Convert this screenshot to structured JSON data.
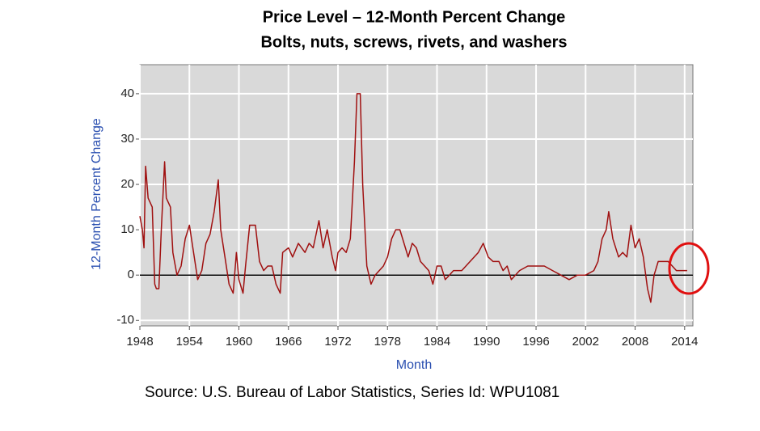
{
  "chart_data": {
    "type": "line",
    "title": "Price Level – 12-Month Percent Change",
    "subtitle": "Bolts, nuts, screws, rivets, and washers",
    "x_label": "Month",
    "y_label": "12-Month Percent Change",
    "source": "Source: U.S. Bureau of Labor Statistics, Series Id:  WPU1081",
    "color": "#a01010",
    "grid": true,
    "xlim": [
      1948,
      2015
    ],
    "ylim": [
      -11.2,
      46.4
    ],
    "xticks": [
      1948,
      1954,
      1960,
      1966,
      1972,
      1978,
      1984,
      1990,
      1996,
      2002,
      2008,
      2014
    ],
    "yticks": [
      -10,
      0,
      10,
      20,
      30,
      40
    ],
    "x": [
      1948,
      1948.3,
      1948.5,
      1948.7,
      1949,
      1949.5,
      1949.8,
      1950,
      1950.3,
      1950.6,
      1951,
      1951.2,
      1951.7,
      1952,
      1952.5,
      1953,
      1953.5,
      1954,
      1954.5,
      1955,
      1955.5,
      1956,
      1956.5,
      1957,
      1957.5,
      1957.8,
      1958.3,
      1958.8,
      1959.3,
      1959.7,
      1960,
      1960.5,
      1960.8,
      1961.3,
      1962,
      1962.5,
      1963,
      1963.5,
      1964,
      1964.5,
      1965,
      1965.3,
      1966,
      1966.5,
      1967.2,
      1968,
      1968.5,
      1969,
      1969.7,
      1970.2,
      1970.7,
      1971.3,
      1971.7,
      1972,
      1972.5,
      1973,
      1973.5,
      1974,
      1974.3,
      1974.7,
      1975,
      1975.5,
      1976,
      1976.5,
      1977,
      1977.5,
      1978,
      1978.5,
      1979,
      1979.5,
      1980,
      1980.5,
      1981,
      1981.5,
      1982,
      1983,
      1983.5,
      1984,
      1984.5,
      1985,
      1985.5,
      1986,
      1987,
      1988,
      1989,
      1989.6,
      1990.2,
      1990.8,
      1991.5,
      1992,
      1992.5,
      1993,
      1994,
      1995,
      1996,
      1997,
      1998,
      1999,
      2000,
      2001,
      2002,
      2003,
      2003.5,
      2004,
      2004.5,
      2004.8,
      2005.3,
      2006,
      2006.5,
      2007,
      2007.5,
      2008,
      2008.5,
      2009,
      2009.5,
      2009.9,
      2010.3,
      2010.8,
      2011.5,
      2012,
      2012.5,
      2013,
      2013.5,
      2014,
      2014.3
    ],
    "values": [
      13,
      10,
      6,
      24,
      17,
      15,
      -2,
      -3,
      -3,
      10,
      25,
      17,
      15,
      5,
      0,
      2,
      8,
      11,
      5,
      -1,
      1,
      7,
      9,
      14,
      21,
      10,
      4,
      -2,
      -4,
      5,
      -1,
      -4,
      2,
      11,
      11,
      3,
      1,
      2,
      2,
      -2,
      -4,
      5,
      6,
      4,
      7,
      5,
      7,
      6,
      12,
      6,
      10,
      4,
      1,
      5,
      6,
      5,
      8,
      25,
      40,
      40,
      20,
      2,
      -2,
      0,
      1,
      2,
      4,
      8,
      10,
      10,
      7,
      4,
      7,
      6,
      3,
      1,
      -2,
      2,
      2,
      -1,
      0,
      1,
      1,
      3,
      5,
      7,
      4,
      3,
      3,
      1,
      2,
      -1,
      1,
      2,
      2,
      2,
      1,
      0,
      -1,
      0,
      0,
      1,
      3,
      8,
      10,
      14,
      8,
      4,
      5,
      4,
      11,
      6,
      8,
      4,
      -3,
      -6,
      0,
      3,
      3,
      3,
      2,
      1,
      1,
      1,
      1
    ]
  }
}
